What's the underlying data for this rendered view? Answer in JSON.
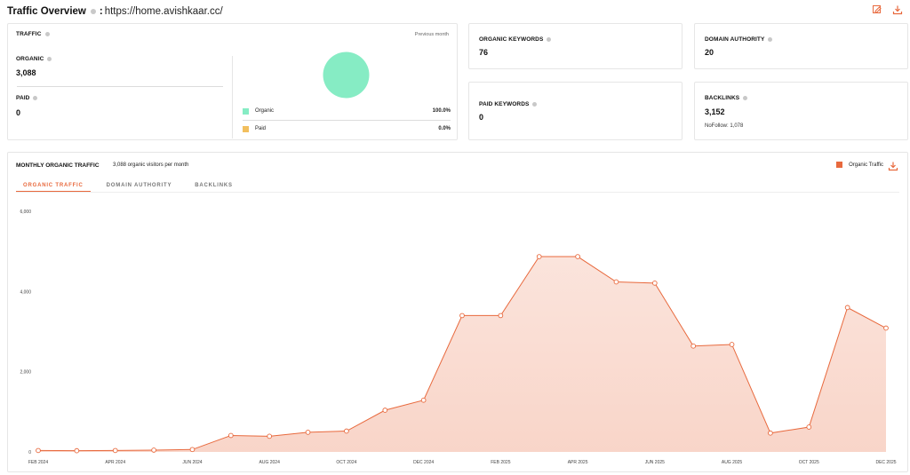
{
  "header": {
    "title": "Traffic Overview",
    "separator": ":",
    "url": "https://home.avishkaar.cc/",
    "actions": [
      {
        "name": "edit-report-icon"
      },
      {
        "name": "download-icon"
      }
    ]
  },
  "traffic": {
    "label": "TRAFFIC",
    "period": "Previous month",
    "organic_label": "ORGANIC",
    "organic_value": "3,088",
    "paid_label": "PAID",
    "paid_value": "0",
    "breakdown": [
      {
        "name": "Organic",
        "pct": "100.0%",
        "share": 1.0,
        "color": "#86ecc4"
      },
      {
        "name": "Paid",
        "pct": "0.0%",
        "share": 0.0,
        "color": "#f2bf5e"
      }
    ]
  },
  "organic_keywords": {
    "label": "ORGANIC KEYWORDS",
    "value": "76"
  },
  "domain_authority": {
    "label": "DOMAIN AUTHORITY",
    "value": "20"
  },
  "paid_keywords": {
    "label": "PAID KEYWORDS",
    "value": "0"
  },
  "backlinks": {
    "label": "BACKLINKS",
    "value": "3,152",
    "nofollow": "NoFollow: 1,078"
  },
  "monthly": {
    "title": "MONTHLY ORGANIC TRAFFIC",
    "subtitle": "3,088 organic visitors per month",
    "legend_label": "Organic Traffic",
    "accent": "#e8693d",
    "tabs": [
      {
        "label": "ORGANIC TRAFFIC",
        "active": true
      },
      {
        "label": "DOMAIN AUTHORITY",
        "active": false
      },
      {
        "label": "BACKLINKS",
        "active": false
      }
    ]
  },
  "chart_data": {
    "type": "area",
    "title": "MONTHLY ORGANIC TRAFFIC",
    "xlabel": "",
    "ylabel": "",
    "x": [
      "FEB 2024",
      "MAR 2024",
      "APR 2024",
      "MAY 2024",
      "JUN 2024",
      "JUL 2024",
      "AUG 2024",
      "SEP 2024",
      "OCT 2024",
      "NOV 2024",
      "DEC 2024",
      "JAN 2025",
      "FEB 2025",
      "MAR 2025",
      "APR 2025",
      "MAY 2025",
      "JUN 2025",
      "JUL 2025",
      "AUG 2025",
      "SEP 2025",
      "OCT 2025",
      "NOV 2025",
      "DEC 2025"
    ],
    "x_tick_labels": [
      "FEB 2024",
      "APR 2024",
      "JUN 2024",
      "AUG 2024",
      "OCT 2024",
      "DEC 2024",
      "FEB 2025",
      "APR 2025",
      "JUN 2025",
      "AUG 2025",
      "OCT 2025",
      "DEC 2025"
    ],
    "series": [
      {
        "name": "Organic Traffic",
        "values": [
          35,
          30,
          35,
          45,
          60,
          410,
          390,
          490,
          520,
          1040,
          1290,
          3400,
          3400,
          4870,
          4870,
          4240,
          4210,
          2640,
          2680,
          470,
          620,
          3600,
          3088
        ]
      }
    ],
    "ylim": [
      0,
      6000
    ],
    "y_ticks": [
      "0",
      "2,000",
      "4,000",
      "6,000"
    ],
    "y_tick_values": [
      0,
      2000,
      4000,
      6000
    ],
    "grid": false,
    "legend": "top-right"
  }
}
